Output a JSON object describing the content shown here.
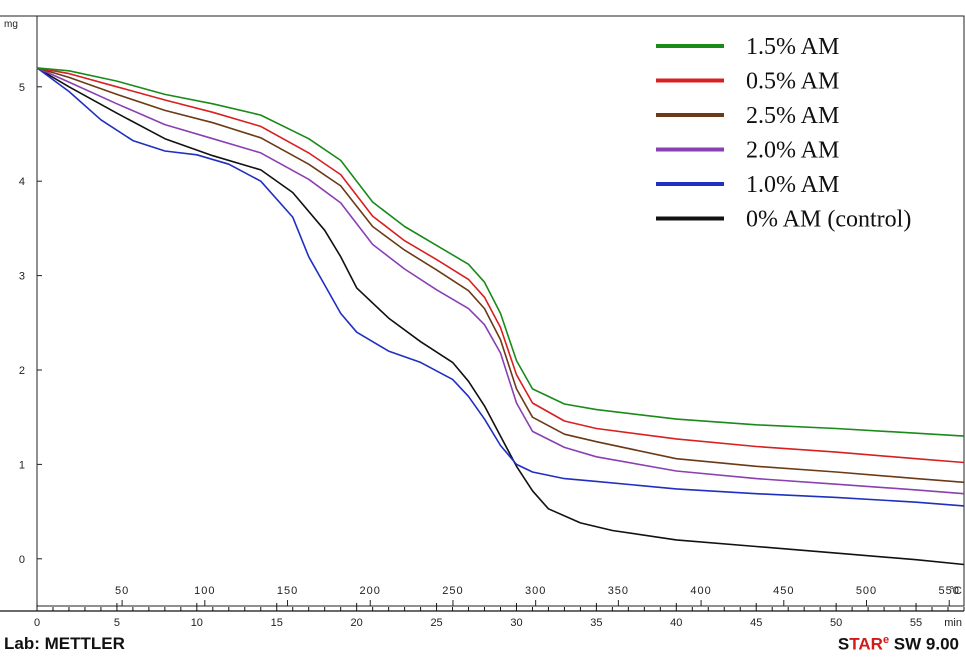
{
  "chart_data": {
    "type": "line",
    "y_unit": "mg",
    "y_ticks": [
      "0",
      "1",
      "2",
      "3",
      "4",
      "5"
    ],
    "ylim": [
      -0.5,
      5.75
    ],
    "temperature_unit": "°C",
    "temperature_ticks": [
      "50",
      "100",
      "150",
      "200",
      "250",
      "300",
      "350",
      "400",
      "450",
      "500",
      "550"
    ],
    "time_unit": "min",
    "time_ticks": [
      "0",
      "5",
      "10",
      "15",
      "20",
      "25",
      "30",
      "35",
      "40",
      "45",
      "50",
      "55"
    ],
    "xlim": [
      0,
      58
    ],
    "grid": false,
    "legend_position": "top-right",
    "series": [
      {
        "name": "1.5% AM",
        "color": "#1a8a1a",
        "x": [
          0,
          2,
          5,
          8,
          11,
          14,
          17,
          19,
          21,
          23,
          25,
          27,
          28,
          29,
          30,
          31,
          33,
          35,
          40,
          45,
          50,
          55,
          58
        ],
        "y": [
          5.2,
          5.17,
          5.06,
          4.92,
          4.82,
          4.7,
          4.45,
          4.22,
          3.78,
          3.52,
          3.32,
          3.12,
          2.93,
          2.6,
          2.1,
          1.8,
          1.64,
          1.58,
          1.48,
          1.42,
          1.38,
          1.33,
          1.3
        ]
      },
      {
        "name": "0.5% AM",
        "color": "#d92020",
        "x": [
          0,
          2,
          5,
          8,
          11,
          14,
          17,
          19,
          21,
          23,
          25,
          27,
          28,
          29,
          30,
          31,
          33,
          35,
          40,
          45,
          50,
          55,
          58
        ],
        "y": [
          5.2,
          5.14,
          5.0,
          4.86,
          4.73,
          4.58,
          4.3,
          4.07,
          3.63,
          3.37,
          3.17,
          2.96,
          2.77,
          2.45,
          1.95,
          1.65,
          1.46,
          1.38,
          1.27,
          1.19,
          1.13,
          1.06,
          1.02
        ]
      },
      {
        "name": "2.5% AM",
        "color": "#6b3a16",
        "x": [
          0,
          2,
          5,
          8,
          11,
          14,
          17,
          19,
          21,
          23,
          25,
          27,
          28,
          29,
          30,
          31,
          33,
          35,
          40,
          45,
          50,
          55,
          58
        ],
        "y": [
          5.2,
          5.1,
          4.92,
          4.75,
          4.62,
          4.46,
          4.18,
          3.95,
          3.52,
          3.27,
          3.06,
          2.84,
          2.65,
          2.32,
          1.8,
          1.5,
          1.32,
          1.24,
          1.06,
          0.98,
          0.92,
          0.85,
          0.81
        ]
      },
      {
        "name": "2.0% AM",
        "color": "#8a3fb3",
        "x": [
          0,
          2,
          5,
          8,
          11,
          14,
          17,
          19,
          21,
          23,
          25,
          27,
          28,
          29,
          30,
          31,
          33,
          35,
          40,
          45,
          50,
          55,
          58
        ],
        "y": [
          5.2,
          5.05,
          4.82,
          4.6,
          4.45,
          4.3,
          4.02,
          3.77,
          3.33,
          3.07,
          2.85,
          2.65,
          2.48,
          2.18,
          1.65,
          1.35,
          1.18,
          1.08,
          0.93,
          0.85,
          0.79,
          0.73,
          0.69
        ]
      },
      {
        "name": "1.0% AM",
        "color": "#1f2fc0",
        "x": [
          0,
          2,
          4,
          6,
          8,
          10,
          12,
          14,
          16,
          17,
          18,
          19,
          20,
          22,
          24,
          26,
          27,
          28,
          29,
          30,
          31,
          33,
          35,
          40,
          45,
          50,
          55,
          58
        ],
        "y": [
          5.2,
          4.95,
          4.65,
          4.43,
          4.32,
          4.28,
          4.18,
          4.0,
          3.62,
          3.2,
          2.9,
          2.6,
          2.4,
          2.2,
          2.08,
          1.9,
          1.72,
          1.48,
          1.2,
          1.0,
          0.92,
          0.85,
          0.82,
          0.74,
          0.69,
          0.65,
          0.6,
          0.56
        ]
      },
      {
        "name": "0% AM (control)",
        "color": "#111111",
        "x": [
          0,
          2,
          5,
          8,
          11,
          14,
          16,
          18,
          19,
          20,
          22,
          24,
          26,
          27,
          28,
          29,
          30,
          31,
          32,
          34,
          36,
          40,
          45,
          50,
          55,
          58
        ],
        "y": [
          5.2,
          5.0,
          4.72,
          4.45,
          4.27,
          4.12,
          3.88,
          3.48,
          3.2,
          2.87,
          2.55,
          2.3,
          2.08,
          1.88,
          1.62,
          1.3,
          0.98,
          0.72,
          0.53,
          0.38,
          0.3,
          0.2,
          0.13,
          0.06,
          -0.01,
          -0.06
        ]
      }
    ]
  },
  "footer": {
    "lab": "Lab: METTLER",
    "brand_s": "S",
    "brand_tar": "TAR",
    "brand_e": "e",
    "brand_sw": " SW 9.00"
  }
}
